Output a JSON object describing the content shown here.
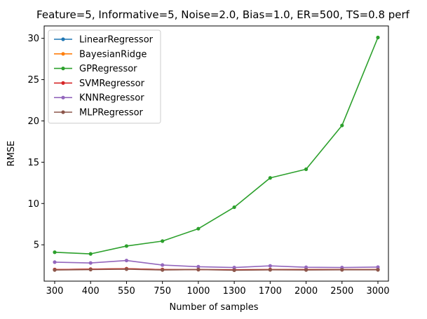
{
  "chart_data": {
    "type": "line",
    "title": "Feature=5, Informative=5, Noise=2.0, Bias=1.0, ER=500, TS=0.8 perf",
    "xlabel": "Number of samples",
    "ylabel": "RMSE",
    "categories": [
      "300",
      "400",
      "550",
      "750",
      "1000",
      "1300",
      "1700",
      "2000",
      "2500",
      "3000"
    ],
    "yticks": [
      5,
      10,
      15,
      20,
      25,
      30
    ],
    "ylim": [
      0.6,
      31.5
    ],
    "grid": false,
    "legend_position": "top-left",
    "series": [
      {
        "name": "LinearRegressor",
        "color": "#1f77b4",
        "values": [
          2.0,
          2.05,
          2.1,
          2.0,
          2.0,
          1.97,
          2.0,
          2.0,
          2.0,
          2.0
        ]
      },
      {
        "name": "BayesianRidge",
        "color": "#ff7f0e",
        "values": [
          2.0,
          2.05,
          2.1,
          2.0,
          2.0,
          1.97,
          2.0,
          2.0,
          2.0,
          2.0
        ]
      },
      {
        "name": "GPRegressor",
        "color": "#2ca02c",
        "values": [
          4.1,
          3.9,
          4.85,
          5.45,
          6.95,
          9.55,
          13.1,
          14.15,
          19.45,
          30.1
        ]
      },
      {
        "name": "SVMRegressor",
        "color": "#d62728",
        "values": [
          2.0,
          2.05,
          2.1,
          2.0,
          2.0,
          1.97,
          2.0,
          2.0,
          2.0,
          2.0
        ]
      },
      {
        "name": "KNNRegressor",
        "color": "#9467bd",
        "values": [
          2.9,
          2.8,
          3.1,
          2.55,
          2.35,
          2.25,
          2.45,
          2.28,
          2.25,
          2.3
        ]
      },
      {
        "name": "MLPRegressor",
        "color": "#8c564b",
        "values": [
          1.95,
          2.0,
          2.05,
          1.95,
          2.0,
          1.92,
          1.97,
          1.95,
          1.97,
          1.97
        ]
      }
    ]
  }
}
